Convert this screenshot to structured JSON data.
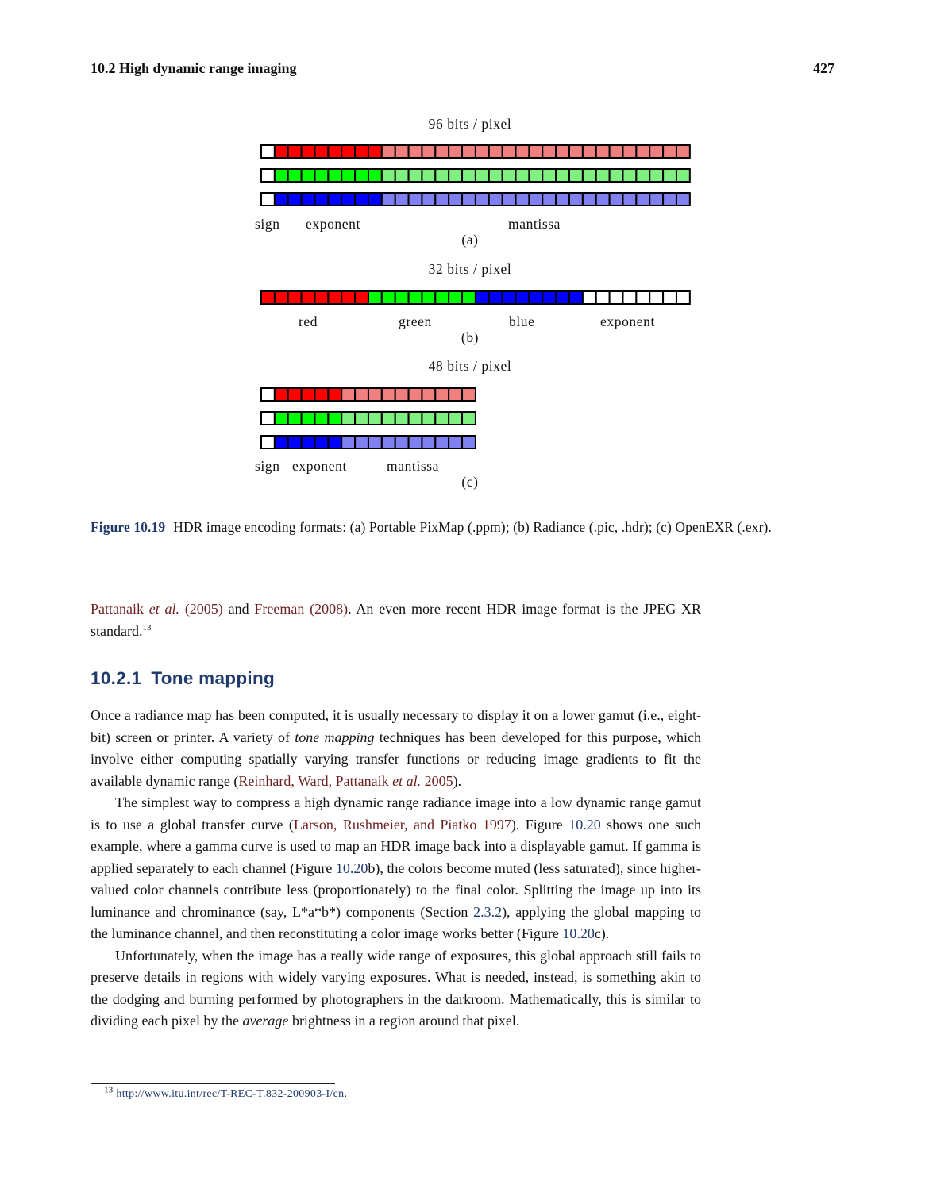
{
  "header": {
    "section": "10.2  High dynamic range imaging",
    "page_number": "427"
  },
  "figure": {
    "a": {
      "title": "96 bits / pixel",
      "labels": {
        "sign": "sign",
        "exponent": "exponent",
        "mantissa": "mantissa"
      },
      "sublabel": "(a)",
      "channel_colors": [
        "#ff0000",
        "#00ff00",
        "#0000ff"
      ],
      "light_colors": [
        "#f08080",
        "#80f080",
        "#8080f0"
      ],
      "bits": {
        "sign": 1,
        "exponent": 8,
        "mantissa": 23
      }
    },
    "b": {
      "title": "32 bits / pixel",
      "labels": {
        "red": "red",
        "green": "green",
        "blue": "blue",
        "exponent": "exponent"
      },
      "sublabel": "(b)",
      "segment_colors": [
        "#ff0000",
        "#00ff00",
        "#0000ff",
        "#ffffff"
      ],
      "bits_per_segment": 8
    },
    "c": {
      "title": "48 bits / pixel",
      "labels": {
        "sign": "sign",
        "exponent": "exponent",
        "mantissa": "mantissa"
      },
      "sublabel": "(c)",
      "channel_colors": [
        "#ff0000",
        "#00ff00",
        "#0000ff"
      ],
      "light_colors": [
        "#f08080",
        "#80f080",
        "#8080f0"
      ],
      "bits": {
        "sign": 1,
        "exponent": 5,
        "mantissa": 10
      }
    },
    "caption": {
      "label": "Figure 10.19",
      "text": "HDR image encoding formats: (a) Portable PixMap (.ppm); (b) Radiance (.pic, .hdr); (c) OpenEXR (.exr)."
    }
  },
  "intro": {
    "cite1_name": "Pattanaik",
    "cite1_etal": "et al.",
    "cite1_year": "(2005)",
    "and": "and",
    "cite2_name": "Freeman",
    "cite2_year": "(2008)",
    "rest": ". An even more recent HDR image format is the JPEG XR standard.",
    "footnote_mark": "13"
  },
  "section": {
    "number": "10.2.1",
    "title": "Tone mapping"
  },
  "paragraph1": {
    "t1": "Once a radiance map has been computed, it is usually necessary to display it on a lower gamut (i.e., eight-bit) screen or printer. A variety of ",
    "em": "tone mapping",
    "t2": " techniques has been developed for this purpose, which involve either computing spatially varying transfer functions or reducing image gradients to fit the available dynamic range (",
    "cite": "Reinhard, Ward, Pattanaik ",
    "cite_etal": "et al.",
    "cite_year": " 2005",
    "t3": ")."
  },
  "paragraph2": {
    "t1": "The simplest way to compress a high dynamic range radiance image into a low dynamic range gamut is to use a global transfer curve (",
    "cite": "Larson, Rushmeier, and Piatko 1997",
    "t2": "). Figure ",
    "ref1": "10.20",
    "t3": " shows one such example, where a gamma curve is used to map an HDR image back into a displayable gamut. If gamma is applied separately to each channel (Figure ",
    "ref2": "10.20",
    "t4": "b), the colors become muted (less saturated), since higher-valued color channels contribute less (proportionately) to the final color. Splitting the image up into its luminance and chrominance (say, L*a*b*) components (Section ",
    "ref3": "2.3.2",
    "t5": "), applying the global mapping to the luminance channel, and then reconstituting a color image works better (Figure ",
    "ref4": "10.20",
    "t6": "c)."
  },
  "paragraph3": {
    "t1": "Unfortunately, when the image has a really wide range of exposures, this global approach still fails to preserve details in regions with widely varying exposures. What is needed, instead, is something akin to the dodging and burning performed by photographers in the darkroom. Mathematically, this is similar to dividing each pixel by the ",
    "em": "average",
    "t2": " brightness in a region around that pixel."
  },
  "footnote": {
    "mark": "13",
    "url": "http://www.itu.int/rec/T-REC-T.832-200903-I/en",
    "end": "."
  }
}
